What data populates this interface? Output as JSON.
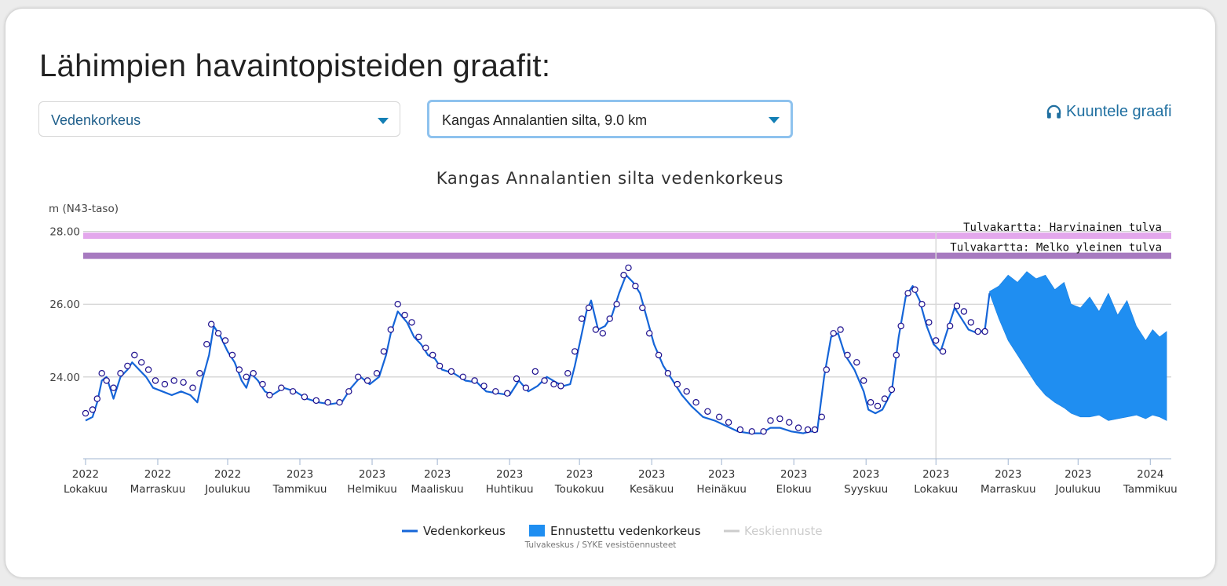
{
  "page": {
    "title": "Lähimpien havaintopisteiden graafit:",
    "select_quantity": "Vedenkorkeus",
    "select_station": "Kangas Annalantien silta, 9.0 km",
    "listen_label": "Kuuntele graafi",
    "listen_icon": "headphones-icon"
  },
  "colors": {
    "observed": "#1565d8",
    "forecast_fill": "#1f8ef1",
    "flood_rare": "#e3a7ec",
    "flood_common": "#a77ac0",
    "markers": "#1a0c8c"
  },
  "chart_data": {
    "type": "line",
    "title": "Kangas Annalantien silta vedenkorkeus",
    "ylabel": "m (N43-taso)",
    "ylim": [
      21.75,
      28.1
    ],
    "yticks": [
      {
        "value": 24,
        "label": "24.00"
      },
      {
        "value": 26,
        "label": "26.00"
      },
      {
        "value": 28,
        "label": "28.00"
      }
    ],
    "xlim": [
      "2022-09-30",
      "2024-01-10"
    ],
    "xticks": [
      {
        "date": "2022-10-01",
        "year": "2022",
        "month": "Lokakuu"
      },
      {
        "date": "2022-11-01",
        "year": "2022",
        "month": "Marraskuu"
      },
      {
        "date": "2022-12-01",
        "year": "2022",
        "month": "Joulukuu"
      },
      {
        "date": "2023-01-01",
        "year": "2023",
        "month": "Tammikuu"
      },
      {
        "date": "2023-02-01",
        "year": "2023",
        "month": "Helmikuu"
      },
      {
        "date": "2023-03-01",
        "year": "2023",
        "month": "Maaliskuu"
      },
      {
        "date": "2023-04-01",
        "year": "2023",
        "month": "Huhtikuu"
      },
      {
        "date": "2023-05-01",
        "year": "2023",
        "month": "Toukokuu"
      },
      {
        "date": "2023-06-01",
        "year": "2023",
        "month": "Kesäkuu"
      },
      {
        "date": "2023-07-01",
        "year": "2023",
        "month": "Heinäkuu"
      },
      {
        "date": "2023-08-01",
        "year": "2023",
        "month": "Elokuu"
      },
      {
        "date": "2023-09-01",
        "year": "2023",
        "month": "Syyskuu"
      },
      {
        "date": "2023-10-01",
        "year": "2023",
        "month": "Lokakuu"
      },
      {
        "date": "2023-11-01",
        "year": "2023",
        "month": "Marraskuu"
      },
      {
        "date": "2023-12-01",
        "year": "2023",
        "month": "Joulukuu"
      },
      {
        "date": "2024-01-01",
        "year": "2024",
        "month": "Tammikuu"
      }
    ],
    "flood_lines": [
      {
        "name": "Tulvakartta: Harvinainen tulva",
        "value": 27.88
      },
      {
        "name": "Tulvakartta: Melko yleinen tulva",
        "value": 27.33
      }
    ],
    "forecast_start": "2023-10-01",
    "observed": [
      [
        "2022-10-01",
        22.8
      ],
      [
        "2022-10-04",
        22.9
      ],
      [
        "2022-10-06",
        23.3
      ],
      [
        "2022-10-08",
        23.9
      ],
      [
        "2022-10-10",
        24.0
      ],
      [
        "2022-10-13",
        23.4
      ],
      [
        "2022-10-16",
        24.0
      ],
      [
        "2022-10-19",
        24.2
      ],
      [
        "2022-10-21",
        24.4
      ],
      [
        "2022-10-24",
        24.2
      ],
      [
        "2022-10-27",
        24.0
      ],
      [
        "2022-10-30",
        23.7
      ],
      [
        "2022-11-03",
        23.6
      ],
      [
        "2022-11-07",
        23.5
      ],
      [
        "2022-11-11",
        23.6
      ],
      [
        "2022-11-15",
        23.5
      ],
      [
        "2022-11-18",
        23.3
      ],
      [
        "2022-11-20",
        23.9
      ],
      [
        "2022-11-23",
        24.6
      ],
      [
        "2022-11-25",
        25.4
      ],
      [
        "2022-11-28",
        25.1
      ],
      [
        "2022-12-01",
        24.7
      ],
      [
        "2022-12-04",
        24.4
      ],
      [
        "2022-12-07",
        23.9
      ],
      [
        "2022-12-09",
        23.7
      ],
      [
        "2022-12-11",
        24.1
      ],
      [
        "2022-12-14",
        23.9
      ],
      [
        "2022-12-17",
        23.6
      ],
      [
        "2022-12-20",
        23.5
      ],
      [
        "2022-12-25",
        23.7
      ],
      [
        "2022-12-30",
        23.6
      ],
      [
        "2023-01-04",
        23.4
      ],
      [
        "2023-01-09",
        23.3
      ],
      [
        "2023-01-14",
        23.25
      ],
      [
        "2023-01-19",
        23.3
      ],
      [
        "2023-01-23",
        23.7
      ],
      [
        "2023-01-27",
        24.0
      ],
      [
        "2023-01-31",
        23.8
      ],
      [
        "2023-02-04",
        24.0
      ],
      [
        "2023-02-07",
        24.6
      ],
      [
        "2023-02-09",
        25.2
      ],
      [
        "2023-02-12",
        25.8
      ],
      [
        "2023-02-16",
        25.5
      ],
      [
        "2023-02-19",
        25.1
      ],
      [
        "2023-02-22",
        24.9
      ],
      [
        "2023-02-25",
        24.6
      ],
      [
        "2023-02-28",
        24.5
      ],
      [
        "2023-03-03",
        24.2
      ],
      [
        "2023-03-08",
        24.1
      ],
      [
        "2023-03-13",
        23.9
      ],
      [
        "2023-03-18",
        23.85
      ],
      [
        "2023-03-22",
        23.6
      ],
      [
        "2023-03-27",
        23.55
      ],
      [
        "2023-04-01",
        23.5
      ],
      [
        "2023-04-05",
        23.9
      ],
      [
        "2023-04-09",
        23.6
      ],
      [
        "2023-04-13",
        23.75
      ],
      [
        "2023-04-17",
        24.0
      ],
      [
        "2023-04-21",
        23.85
      ],
      [
        "2023-04-24",
        23.75
      ],
      [
        "2023-04-27",
        23.8
      ],
      [
        "2023-04-29",
        24.3
      ],
      [
        "2023-05-01",
        24.9
      ],
      [
        "2023-05-04",
        25.8
      ],
      [
        "2023-05-06",
        26.1
      ],
      [
        "2023-05-09",
        25.3
      ],
      [
        "2023-05-12",
        25.4
      ],
      [
        "2023-05-15",
        25.7
      ],
      [
        "2023-05-18",
        26.3
      ],
      [
        "2023-05-21",
        26.8
      ],
      [
        "2023-05-24",
        26.6
      ],
      [
        "2023-05-27",
        26.3
      ],
      [
        "2023-05-30",
        25.6
      ],
      [
        "2023-06-02",
        24.9
      ],
      [
        "2023-06-06",
        24.3
      ],
      [
        "2023-06-10",
        23.9
      ],
      [
        "2023-06-14",
        23.5
      ],
      [
        "2023-06-18",
        23.2
      ],
      [
        "2023-06-23",
        22.9
      ],
      [
        "2023-06-28",
        22.8
      ],
      [
        "2023-07-03",
        22.65
      ],
      [
        "2023-07-08",
        22.5
      ],
      [
        "2023-07-13",
        22.45
      ],
      [
        "2023-07-18",
        22.45
      ],
      [
        "2023-07-22",
        22.6
      ],
      [
        "2023-07-26",
        22.6
      ],
      [
        "2023-07-31",
        22.5
      ],
      [
        "2023-08-05",
        22.45
      ],
      [
        "2023-08-08",
        22.5
      ],
      [
        "2023-08-11",
        22.5
      ],
      [
        "2023-08-14",
        24.0
      ],
      [
        "2023-08-17",
        25.1
      ],
      [
        "2023-08-20",
        25.2
      ],
      [
        "2023-08-23",
        24.6
      ],
      [
        "2023-08-27",
        24.2
      ],
      [
        "2023-08-31",
        23.6
      ],
      [
        "2023-09-02",
        23.1
      ],
      [
        "2023-09-05",
        23.0
      ],
      [
        "2023-09-08",
        23.1
      ],
      [
        "2023-09-12",
        23.6
      ],
      [
        "2023-09-15",
        25.1
      ],
      [
        "2023-09-18",
        26.2
      ],
      [
        "2023-09-21",
        26.5
      ],
      [
        "2023-09-24",
        26.1
      ],
      [
        "2023-09-27",
        25.4
      ],
      [
        "2023-09-30",
        24.9
      ],
      [
        "2023-10-03",
        24.7
      ],
      [
        "2023-10-06",
        25.3
      ],
      [
        "2023-10-09",
        25.9
      ],
      [
        "2023-10-12",
        25.6
      ],
      [
        "2023-10-15",
        25.3
      ],
      [
        "2023-10-19",
        25.2
      ],
      [
        "2023-10-22",
        25.3
      ],
      [
        "2023-10-24",
        26.3
      ]
    ],
    "observed_markers": [
      [
        "2022-10-01",
        23.0
      ],
      [
        "2022-10-04",
        23.1
      ],
      [
        "2022-10-06",
        23.4
      ],
      [
        "2022-10-08",
        24.1
      ],
      [
        "2022-10-10",
        23.9
      ],
      [
        "2022-10-13",
        23.7
      ],
      [
        "2022-10-16",
        24.1
      ],
      [
        "2022-10-19",
        24.3
      ],
      [
        "2022-10-22",
        24.6
      ],
      [
        "2022-10-25",
        24.4
      ],
      [
        "2022-10-28",
        24.2
      ],
      [
        "2022-10-31",
        23.9
      ],
      [
        "2022-11-04",
        23.8
      ],
      [
        "2022-11-08",
        23.9
      ],
      [
        "2022-11-12",
        23.85
      ],
      [
        "2022-11-16",
        23.7
      ],
      [
        "2022-11-19",
        24.1
      ],
      [
        "2022-11-22",
        24.9
      ],
      [
        "2022-11-24",
        25.45
      ],
      [
        "2022-11-27",
        25.2
      ],
      [
        "2022-11-30",
        25.0
      ],
      [
        "2022-12-03",
        24.6
      ],
      [
        "2022-12-06",
        24.2
      ],
      [
        "2022-12-09",
        24.0
      ],
      [
        "2022-12-12",
        24.1
      ],
      [
        "2022-12-16",
        23.8
      ],
      [
        "2022-12-19",
        23.5
      ],
      [
        "2022-12-24",
        23.7
      ],
      [
        "2022-12-29",
        23.6
      ],
      [
        "2023-01-03",
        23.45
      ],
      [
        "2023-01-08",
        23.35
      ],
      [
        "2023-01-13",
        23.3
      ],
      [
        "2023-01-18",
        23.3
      ],
      [
        "2023-01-22",
        23.6
      ],
      [
        "2023-01-26",
        24.0
      ],
      [
        "2023-01-30",
        23.9
      ],
      [
        "2023-02-03",
        24.1
      ],
      [
        "2023-02-06",
        24.7
      ],
      [
        "2023-02-09",
        25.3
      ],
      [
        "2023-02-12",
        26.0
      ],
      [
        "2023-02-15",
        25.7
      ],
      [
        "2023-02-18",
        25.5
      ],
      [
        "2023-02-21",
        25.1
      ],
      [
        "2023-02-24",
        24.8
      ],
      [
        "2023-02-27",
        24.6
      ],
      [
        "2023-03-02",
        24.3
      ],
      [
        "2023-03-07",
        24.15
      ],
      [
        "2023-03-12",
        24.0
      ],
      [
        "2023-03-17",
        23.9
      ],
      [
        "2023-03-21",
        23.75
      ],
      [
        "2023-03-26",
        23.6
      ],
      [
        "2023-03-31",
        23.55
      ],
      [
        "2023-04-04",
        23.95
      ],
      [
        "2023-04-08",
        23.7
      ],
      [
        "2023-04-12",
        24.15
      ],
      [
        "2023-04-16",
        23.9
      ],
      [
        "2023-04-20",
        23.8
      ],
      [
        "2023-04-23",
        23.75
      ],
      [
        "2023-04-26",
        24.1
      ],
      [
        "2023-04-29",
        24.7
      ],
      [
        "2023-05-02",
        25.6
      ],
      [
        "2023-05-05",
        25.9
      ],
      [
        "2023-05-08",
        25.3
      ],
      [
        "2023-05-11",
        25.2
      ],
      [
        "2023-05-14",
        25.6
      ],
      [
        "2023-05-17",
        26.0
      ],
      [
        "2023-05-20",
        26.8
      ],
      [
        "2023-05-22",
        27.0
      ],
      [
        "2023-05-25",
        26.5
      ],
      [
        "2023-05-28",
        25.9
      ],
      [
        "2023-05-31",
        25.2
      ],
      [
        "2023-06-04",
        24.6
      ],
      [
        "2023-06-08",
        24.1
      ],
      [
        "2023-06-12",
        23.8
      ],
      [
        "2023-06-16",
        23.6
      ],
      [
        "2023-06-20",
        23.3
      ],
      [
        "2023-06-25",
        23.05
      ],
      [
        "2023-06-30",
        22.9
      ],
      [
        "2023-07-04",
        22.75
      ],
      [
        "2023-07-09",
        22.55
      ],
      [
        "2023-07-14",
        22.5
      ],
      [
        "2023-07-19",
        22.5
      ],
      [
        "2023-07-22",
        22.8
      ],
      [
        "2023-07-26",
        22.85
      ],
      [
        "2023-07-30",
        22.75
      ],
      [
        "2023-08-03",
        22.6
      ],
      [
        "2023-08-07",
        22.55
      ],
      [
        "2023-08-10",
        22.55
      ],
      [
        "2023-08-13",
        22.9
      ],
      [
        "2023-08-15",
        24.2
      ],
      [
        "2023-08-18",
        25.2
      ],
      [
        "2023-08-21",
        25.3
      ],
      [
        "2023-08-24",
        24.6
      ],
      [
        "2023-08-28",
        24.4
      ],
      [
        "2023-08-31",
        23.9
      ],
      [
        "2023-09-03",
        23.3
      ],
      [
        "2023-09-06",
        23.2
      ],
      [
        "2023-09-09",
        23.4
      ],
      [
        "2023-09-12",
        23.65
      ],
      [
        "2023-09-14",
        24.6
      ],
      [
        "2023-09-16",
        25.4
      ],
      [
        "2023-09-19",
        26.3
      ],
      [
        "2023-09-22",
        26.4
      ],
      [
        "2023-09-25",
        26.0
      ],
      [
        "2023-09-28",
        25.5
      ],
      [
        "2023-10-01",
        25.0
      ],
      [
        "2023-10-04",
        24.7
      ],
      [
        "2023-10-07",
        25.4
      ],
      [
        "2023-10-10",
        25.95
      ],
      [
        "2023-10-13",
        25.8
      ],
      [
        "2023-10-16",
        25.5
      ],
      [
        "2023-10-19",
        25.25
      ],
      [
        "2023-10-22",
        25.25
      ]
    ],
    "forecast_band": [
      [
        "2023-10-24",
        26.3,
        26.35
      ],
      [
        "2023-10-28",
        25.6,
        26.5
      ],
      [
        "2023-11-01",
        25.0,
        26.8
      ],
      [
        "2023-11-05",
        24.6,
        26.6
      ],
      [
        "2023-11-09",
        24.2,
        26.9
      ],
      [
        "2023-11-13",
        23.8,
        26.7
      ],
      [
        "2023-11-17",
        23.5,
        26.8
      ],
      [
        "2023-11-21",
        23.3,
        26.4
      ],
      [
        "2023-11-25",
        23.15,
        26.6
      ],
      [
        "2023-11-28",
        23.0,
        26.0
      ],
      [
        "2023-12-02",
        22.9,
        25.9
      ],
      [
        "2023-12-06",
        22.9,
        26.2
      ],
      [
        "2023-12-10",
        22.95,
        25.8
      ],
      [
        "2023-12-14",
        22.8,
        26.3
      ],
      [
        "2023-12-18",
        22.85,
        25.7
      ],
      [
        "2023-12-22",
        22.9,
        26.1
      ],
      [
        "2023-12-26",
        22.95,
        25.4
      ],
      [
        "2023-12-30",
        22.85,
        25.0
      ],
      [
        "2024-01-02",
        22.95,
        25.3
      ],
      [
        "2024-01-05",
        22.9,
        25.1
      ],
      [
        "2024-01-08",
        22.8,
        25.25
      ]
    ],
    "legend": [
      {
        "name": "Vedenkorkeus",
        "kind": "line",
        "active": true
      },
      {
        "name": "Ennustettu vedenkorkeus",
        "kind": "area",
        "active": true
      },
      {
        "name": "Keskiennuste",
        "kind": "line",
        "active": false
      }
    ],
    "credits": "Tulvakeskus / SYKE vesistöennusteet"
  }
}
